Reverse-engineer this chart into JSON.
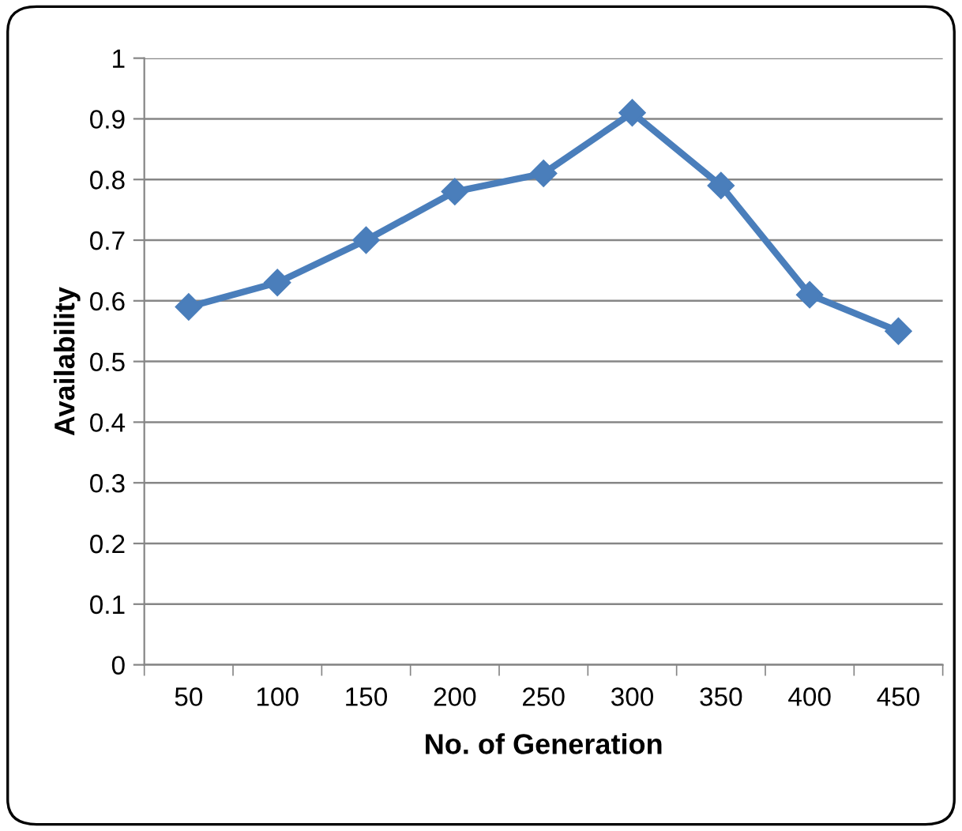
{
  "chart_data": {
    "type": "line",
    "xlabel": "No. of Generation",
    "ylabel": "Availability",
    "categories": [
      "50",
      "100",
      "150",
      "200",
      "250",
      "300",
      "350",
      "400",
      "450"
    ],
    "series": [
      {
        "color": "#4a7ebb",
        "values": [
          0.59,
          0.63,
          0.7,
          0.78,
          0.81,
          0.91,
          0.79,
          0.61,
          0.55
        ]
      }
    ],
    "ylim": [
      0,
      1
    ],
    "yticks": [
      0,
      0.1,
      0.2,
      0.3,
      0.4,
      0.5,
      0.6,
      0.7,
      0.8,
      0.9,
      1
    ],
    "grid": "y",
    "marker": "diamond",
    "line_style": "solid"
  }
}
